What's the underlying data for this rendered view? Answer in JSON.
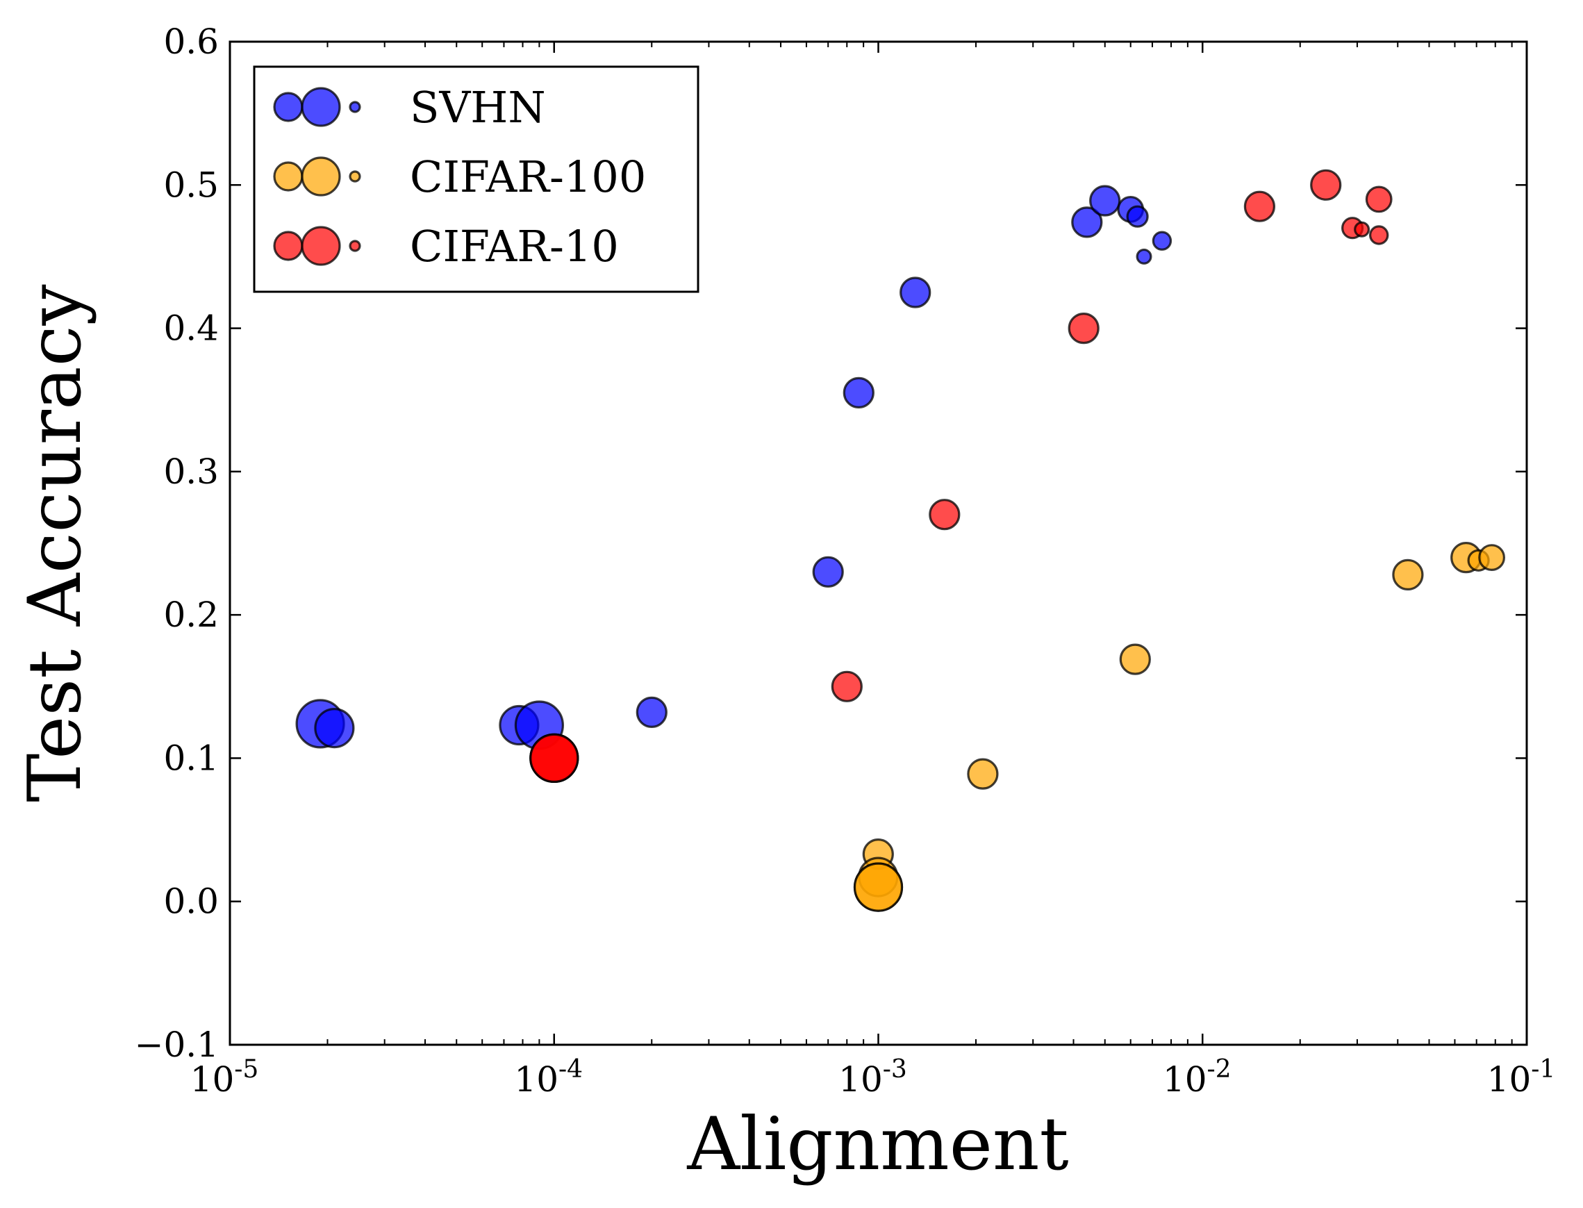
{
  "chart_data": {
    "type": "scatter",
    "xscale": "log",
    "xlabel": "Alignment",
    "ylabel": "Test Accuracy",
    "xlim": [
      1e-05,
      0.1
    ],
    "ylim": [
      -0.1,
      0.6
    ],
    "xticks": [
      {
        "value": 1e-05,
        "base": "10",
        "exp": "-5"
      },
      {
        "value": 0.0001,
        "base": "10",
        "exp": "-4"
      },
      {
        "value": 0.001,
        "base": "10",
        "exp": "-3"
      },
      {
        "value": 0.01,
        "base": "10",
        "exp": "-2"
      },
      {
        "value": 0.1,
        "base": "10",
        "exp": "-1"
      }
    ],
    "yticks": [
      {
        "value": -0.1,
        "label": "−0.1"
      },
      {
        "value": 0.0,
        "label": "0.0"
      },
      {
        "value": 0.1,
        "label": "0.1"
      },
      {
        "value": 0.2,
        "label": "0.2"
      },
      {
        "value": 0.3,
        "label": "0.3"
      },
      {
        "value": 0.4,
        "label": "0.4"
      },
      {
        "value": 0.5,
        "label": "0.5"
      },
      {
        "value": 0.6,
        "label": "0.6"
      }
    ],
    "legend": {
      "position": "upper-left",
      "entries": [
        "SVHN",
        "CIFAR-100",
        "CIFAR-10"
      ]
    },
    "series": [
      {
        "name": "CIFAR-100",
        "color": "#FFA500",
        "points": [
          {
            "x": 0.000999,
            "y": 0.033,
            "size": 2
          },
          {
            "x": 0.000999,
            "y": 0.017,
            "size": 3
          },
          {
            "x": 0.001,
            "y": 0.01,
            "size": 4
          },
          {
            "x": 0.001,
            "y": 0.01,
            "size": 4
          },
          {
            "x": 0.0021,
            "y": 0.089,
            "size": 2
          },
          {
            "x": 0.0062,
            "y": 0.169,
            "size": 2
          },
          {
            "x": 0.043,
            "y": 0.228,
            "size": 2
          },
          {
            "x": 0.065,
            "y": 0.24,
            "size": 2
          },
          {
            "x": 0.071,
            "y": 0.238,
            "size": 1
          },
          {
            "x": 0.078,
            "y": 0.24,
            "size": 1.5
          }
        ]
      },
      {
        "name": "SVHN",
        "color": "#0000FF",
        "points": [
          {
            "x": 1.9e-05,
            "y": 0.124,
            "size": 4
          },
          {
            "x": 2.1e-05,
            "y": 0.121,
            "size": 3
          },
          {
            "x": 7.8e-05,
            "y": 0.123,
            "size": 3
          },
          {
            "x": 9e-05,
            "y": 0.123,
            "size": 4
          },
          {
            "x": 0.0002,
            "y": 0.132,
            "size": 2
          },
          {
            "x": 0.0007,
            "y": 0.23,
            "size": 2
          },
          {
            "x": 0.00087,
            "y": 0.355,
            "size": 2
          },
          {
            "x": 0.0013,
            "y": 0.425,
            "size": 2
          },
          {
            "x": 0.0044,
            "y": 0.474,
            "size": 2
          },
          {
            "x": 0.005,
            "y": 0.489,
            "size": 2
          },
          {
            "x": 0.006,
            "y": 0.483,
            "size": 1.5
          },
          {
            "x": 0.0063,
            "y": 0.478,
            "size": 1
          },
          {
            "x": 0.0066,
            "y": 0.45,
            "size": 0.3
          },
          {
            "x": 0.0075,
            "y": 0.461,
            "size": 0.7
          }
        ]
      },
      {
        "name": "CIFAR-10",
        "color": "#FF0000",
        "points": [
          {
            "x": 0.0001,
            "y": 0.1,
            "size": 4
          },
          {
            "x": 0.0001,
            "y": 0.1,
            "size": 4
          },
          {
            "x": 0.0001,
            "y": 0.1,
            "size": 4
          },
          {
            "x": 0.0008,
            "y": 0.15,
            "size": 2
          },
          {
            "x": 0.0016,
            "y": 0.27,
            "size": 2
          },
          {
            "x": 0.0043,
            "y": 0.4,
            "size": 2
          },
          {
            "x": 0.015,
            "y": 0.485,
            "size": 2
          },
          {
            "x": 0.024,
            "y": 0.5,
            "size": 2
          },
          {
            "x": 0.029,
            "y": 0.47,
            "size": 1
          },
          {
            "x": 0.031,
            "y": 0.469,
            "size": 0.3
          },
          {
            "x": 0.035,
            "y": 0.49,
            "size": 1.5
          },
          {
            "x": 0.035,
            "y": 0.465,
            "size": 0.7
          }
        ]
      }
    ]
  }
}
